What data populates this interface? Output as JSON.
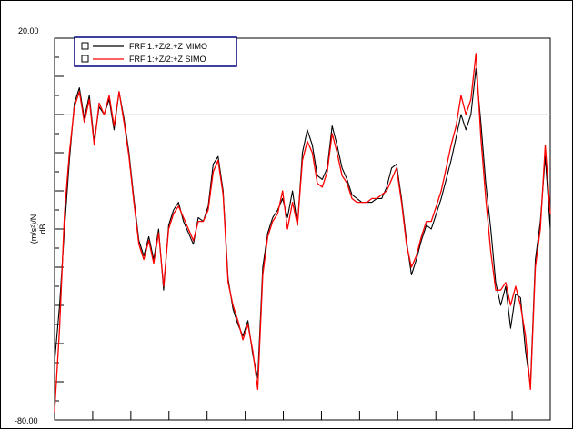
{
  "chart_data": {
    "type": "line",
    "ylim": [
      -80.0,
      20.0
    ],
    "y_tick_labels": [
      "20.00",
      "-80.00"
    ],
    "ylabel_top": "(m/s²)/N",
    "ylabel_bottom": "dB",
    "x_tick_count": 13,
    "grid": false,
    "legend_position": "top-left",
    "series": [
      {
        "name": "FRF 1:+Z/2:+Z  MIMO",
        "color": "#000000",
        "x": [
          0,
          1,
          2,
          3,
          4,
          5,
          6,
          7,
          8,
          9,
          10,
          11,
          12,
          13,
          14,
          15,
          16,
          17,
          18,
          19,
          20,
          21,
          22,
          23,
          24,
          25,
          26,
          27,
          28,
          29,
          30,
          31,
          32,
          33,
          34,
          35,
          36,
          37,
          38,
          39,
          40,
          41,
          42,
          43,
          44,
          45,
          46,
          47,
          48,
          49,
          50,
          51,
          52,
          53,
          54,
          55,
          56,
          57,
          58,
          59,
          60,
          61,
          62,
          63,
          64,
          65,
          66,
          67,
          68,
          69,
          70,
          71,
          72,
          73,
          74,
          75,
          76,
          77,
          78,
          79,
          80,
          81,
          82,
          83,
          84,
          85,
          86,
          87,
          88,
          89,
          90,
          91,
          92,
          93,
          94,
          95,
          96,
          97,
          98,
          99,
          100
        ],
        "values": [
          -65,
          -50,
          -30,
          -12,
          3,
          7,
          -1,
          5,
          -7,
          2,
          0,
          4,
          -4,
          6,
          -1,
          -10,
          -22,
          -33,
          -37,
          -32,
          -38,
          -30,
          -46,
          -29,
          -25,
          -23,
          -28,
          -31,
          -34,
          -27,
          -28,
          -24,
          -13,
          -11,
          -20,
          -43,
          -51,
          -55,
          -58,
          -54,
          -63,
          -69,
          -40,
          -31,
          -27,
          -25,
          -22,
          -27,
          -20,
          -29,
          -10,
          -4,
          -8,
          -16,
          -17,
          -14,
          -3,
          -8,
          -14,
          -17,
          -21,
          -22,
          -23,
          -23,
          -23,
          -22,
          -22,
          -19,
          -14,
          -13,
          -22,
          -33,
          -42,
          -38,
          -33,
          -29,
          -30,
          -26,
          -22,
          -17,
          -12,
          -6,
          0,
          -4,
          0,
          12,
          -2,
          -18,
          -30,
          -44,
          -50,
          -45,
          -56,
          -47,
          -48,
          -62,
          -71,
          -38,
          -28,
          -11,
          -30
        ]
      },
      {
        "name": "FRF 1:+Z/2:+Z  SIMO",
        "color": "#ff0000",
        "x": [
          0,
          1,
          2,
          3,
          4,
          5,
          6,
          7,
          8,
          9,
          10,
          11,
          12,
          13,
          14,
          15,
          16,
          17,
          18,
          19,
          20,
          21,
          22,
          23,
          24,
          25,
          26,
          27,
          28,
          29,
          30,
          31,
          32,
          33,
          34,
          35,
          36,
          37,
          38,
          39,
          40,
          41,
          42,
          43,
          44,
          45,
          46,
          47,
          48,
          49,
          50,
          51,
          52,
          53,
          54,
          55,
          56,
          57,
          58,
          59,
          60,
          61,
          62,
          63,
          64,
          65,
          66,
          67,
          68,
          69,
          70,
          71,
          72,
          73,
          74,
          75,
          76,
          77,
          78,
          79,
          80,
          81,
          82,
          83,
          84,
          85,
          86,
          87,
          88,
          89,
          90,
          91,
          92,
          93,
          94,
          95,
          96,
          97,
          98,
          99,
          100
        ],
        "values": [
          -78,
          -56,
          -26,
          -10,
          2,
          6,
          -2,
          4,
          -8,
          3,
          0,
          5,
          -3,
          6,
          -2,
          -11,
          -23,
          -34,
          -38,
          -33,
          -39,
          -31,
          -45,
          -30,
          -26,
          -24,
          -27,
          -30,
          -33,
          -28,
          -28,
          -25,
          -15,
          -12,
          -21,
          -44,
          -50,
          -54,
          -59,
          -55,
          -62,
          -72,
          -42,
          -32,
          -28,
          -26,
          -20,
          -30,
          -23,
          -29,
          -12,
          -7,
          -10,
          -18,
          -19,
          -15,
          -5,
          -10,
          -16,
          -18,
          -22,
          -23,
          -23,
          -23,
          -22,
          -22,
          -21,
          -20,
          -17,
          -14,
          -23,
          -34,
          -40,
          -37,
          -32,
          -28,
          -28,
          -24,
          -20,
          -14,
          -8,
          -3,
          5,
          0,
          4,
          16,
          -6,
          -22,
          -36,
          -46,
          -46,
          -44,
          -50,
          -45,
          -50,
          -58,
          -72,
          -40,
          -30,
          -8,
          -26
        ]
      }
    ]
  }
}
